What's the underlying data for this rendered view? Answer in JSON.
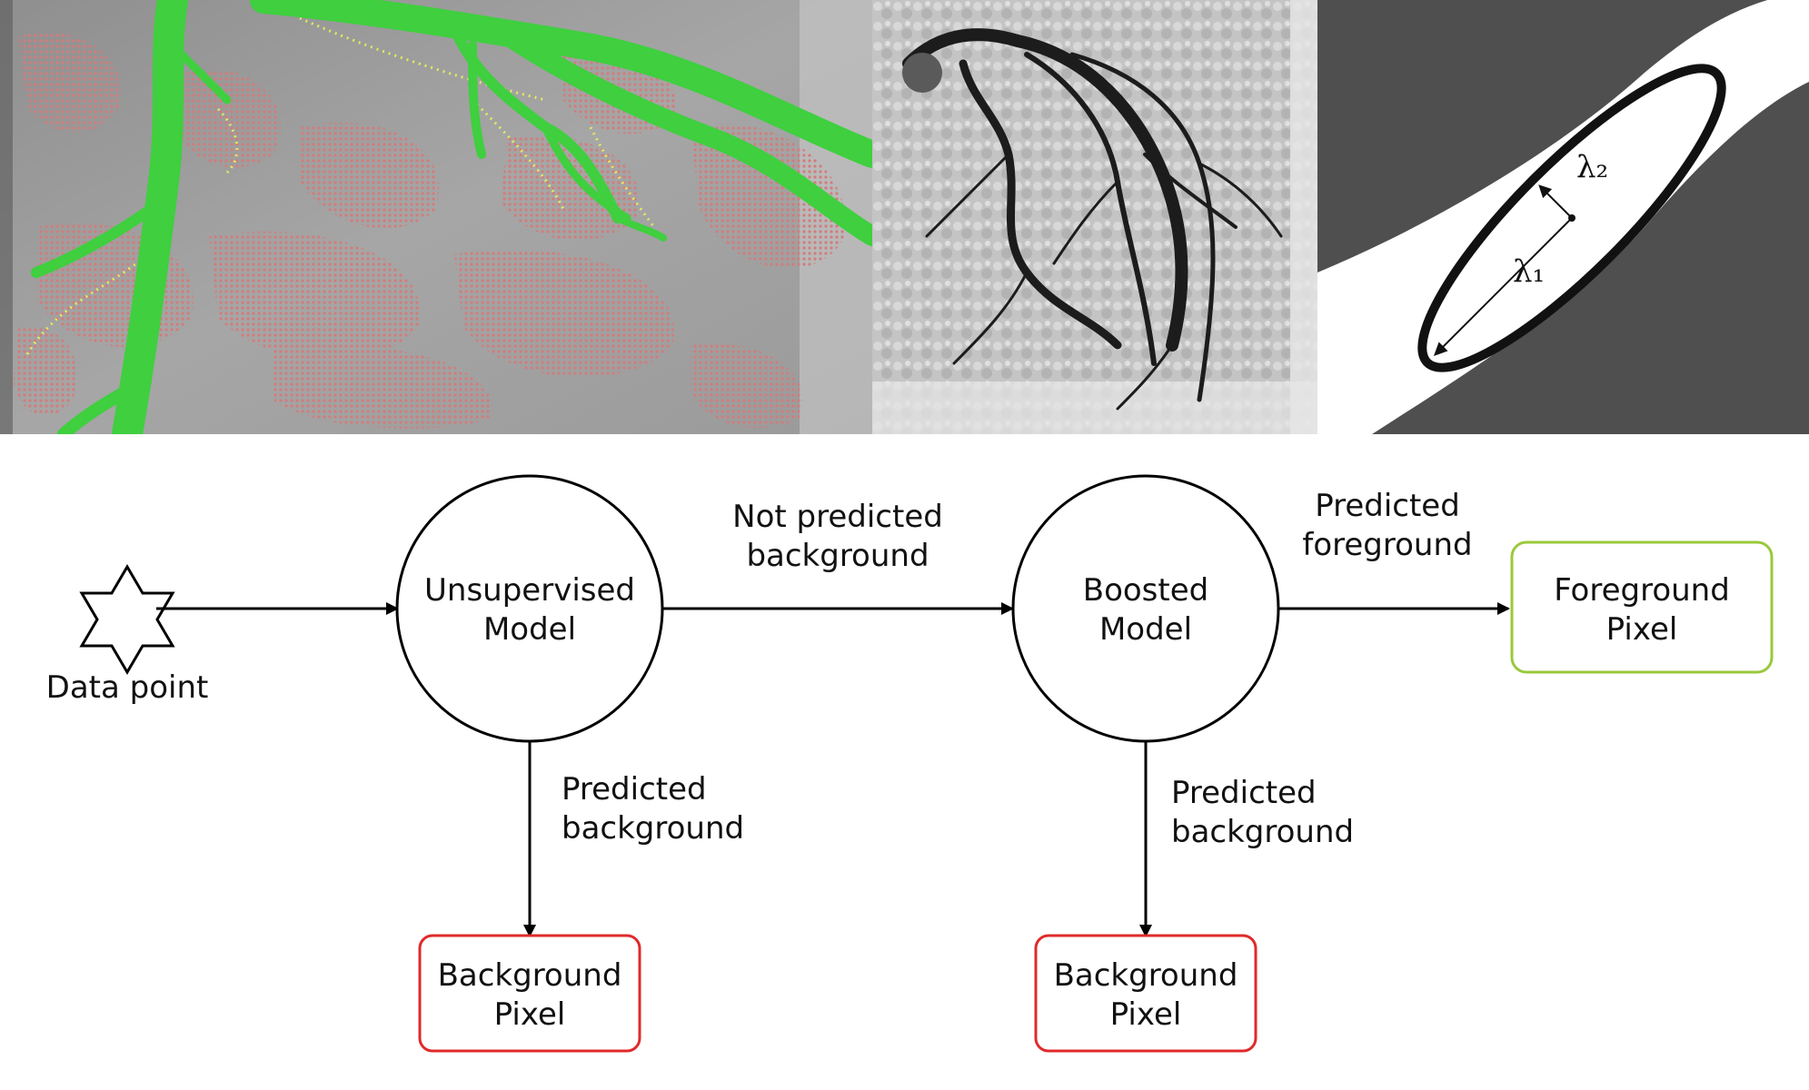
{
  "panels": {
    "ellipse_labels": {
      "lambda1": "λ₁",
      "lambda2": "λ₂"
    }
  },
  "flow": {
    "start_label": "Data point",
    "unsupervised": {
      "line1": "Unsupervised",
      "line2": "Model"
    },
    "boosted": {
      "line1": "Boosted",
      "line2": "Model"
    },
    "foreground": {
      "line1": "Foreground",
      "line2": "Pixel"
    },
    "background_a": {
      "line1": "Background",
      "line2": "Pixel"
    },
    "background_b": {
      "line1": "Background",
      "line2": "Pixel"
    },
    "edge_not_predicted_bg": {
      "line1": "Not predicted",
      "line2": "background"
    },
    "edge_predicted_fg": {
      "line1": "Predicted",
      "line2": "foreground"
    },
    "edge_predicted_bg_a": {
      "line1": "Predicted",
      "line2": "background"
    },
    "edge_predicted_bg_b": {
      "line1": "Predicted",
      "line2": "background"
    }
  },
  "colors": {
    "vessel_green": "#3fcf3f",
    "overlay_red": "#d27c7c",
    "highlight_yellow": "#e8f25a",
    "foreground_border": "#99c93a",
    "background_border": "#e02a2a",
    "dark_panel": "#4f4f4f"
  }
}
